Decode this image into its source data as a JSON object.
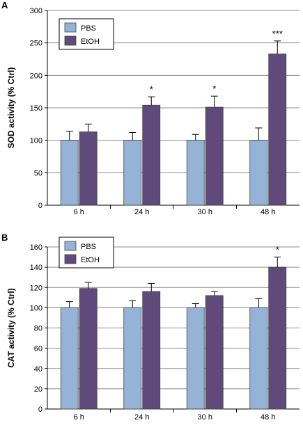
{
  "colors": {
    "PBS": "#95b3d7",
    "EtOH": "#604a7b",
    "edge": "#404040",
    "grid": "#8c8c8c"
  },
  "chart_data": [
    {
      "panel": "A",
      "type": "bar",
      "ylabel": "SOD activity  (% Ctrl)",
      "ylim": [
        0,
        300
      ],
      "yticks": [
        0,
        50,
        100,
        150,
        200,
        250,
        300
      ],
      "grid": true,
      "legend_position": "top-left",
      "categories": [
        "6 h",
        "24 h",
        "30 h",
        "48 h"
      ],
      "series": [
        {
          "name": "PBS",
          "values": [
            100,
            100,
            100,
            100
          ],
          "errors": [
            14,
            12,
            9,
            19
          ]
        },
        {
          "name": "EtOH",
          "values": [
            113,
            154,
            151,
            233
          ],
          "errors": [
            12,
            13,
            17,
            20
          ]
        }
      ],
      "significance": [
        "",
        "*",
        "*",
        "***"
      ]
    },
    {
      "panel": "B",
      "type": "bar",
      "ylabel": "CAT activity (% Ctrl)",
      "ylim": [
        0,
        160
      ],
      "yticks": [
        0,
        20,
        40,
        60,
        80,
        100,
        120,
        140,
        160
      ],
      "grid": true,
      "legend_position": "top-left",
      "categories": [
        "6 h",
        "24 h",
        "30 h",
        "48 h"
      ],
      "series": [
        {
          "name": "PBS",
          "values": [
            100,
            100,
            100,
            100
          ],
          "errors": [
            6,
            7,
            4,
            9
          ]
        },
        {
          "name": "EtOH",
          "values": [
            119,
            116,
            112,
            140
          ],
          "errors": [
            6,
            8,
            4,
            10
          ]
        }
      ],
      "significance": [
        "",
        "",
        "",
        "*"
      ]
    }
  ]
}
